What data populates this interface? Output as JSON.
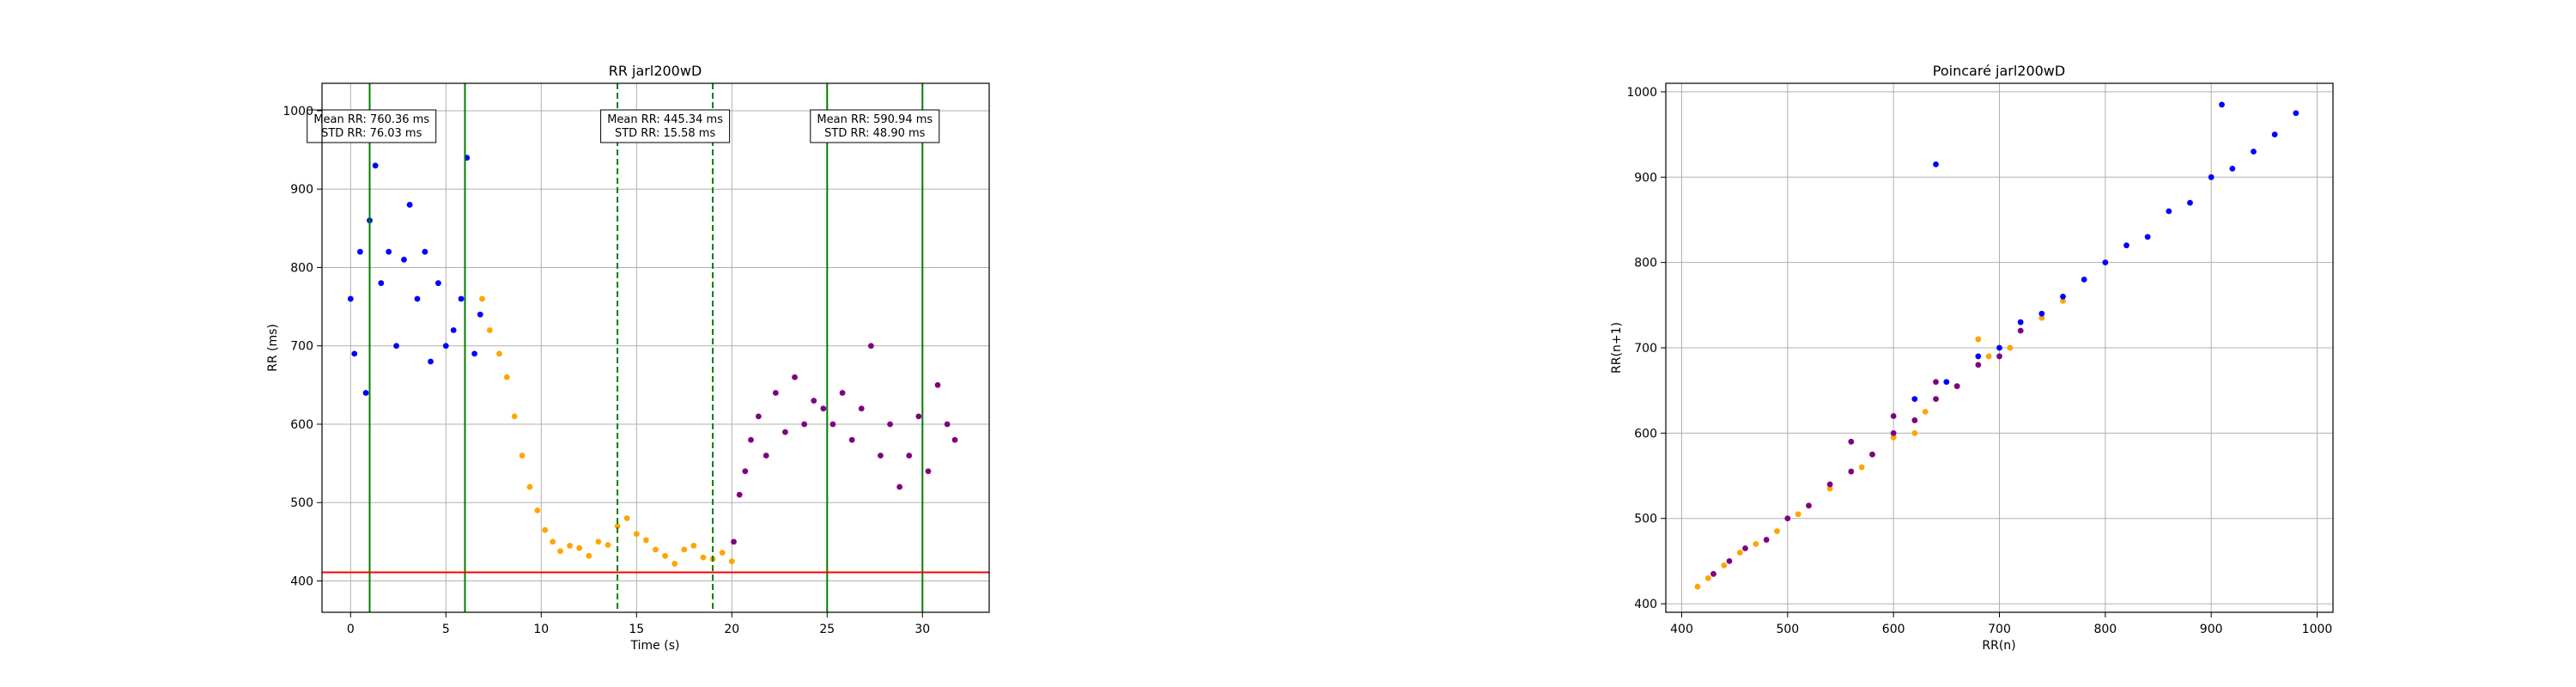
{
  "colors": {
    "blue": "#0000ff",
    "orange": "#ffa500",
    "purple": "#800080",
    "green": "#008000",
    "red": "#ff0000",
    "grid": "#b0b0b0"
  },
  "chart_data": [
    {
      "type": "scatter",
      "title": "RR jarl200wD",
      "xlabel": "Time (s)",
      "ylabel": "RR (ms)",
      "xlim": [
        -1.5,
        33.5
      ],
      "ylim": [
        360,
        1035
      ],
      "xticks": [
        0,
        5,
        10,
        15,
        20,
        25,
        30
      ],
      "yticks": [
        400,
        500,
        600,
        700,
        800,
        900,
        1000
      ],
      "grid": true,
      "vlines_solid": [
        1,
        6,
        25,
        30
      ],
      "vlines_dashed": [
        14,
        19
      ],
      "hline": 411,
      "annotations": [
        {
          "x": 1.1,
          "line1": "Mean RR: 760.36 ms",
          "line2": "STD RR: 76.03 ms"
        },
        {
          "x": 16.5,
          "line1": "Mean RR: 445.34 ms",
          "line2": "STD RR: 15.58 ms"
        },
        {
          "x": 27.5,
          "line1": "Mean RR: 590.94 ms",
          "line2": "STD RR: 48.90 ms"
        }
      ],
      "series": [
        {
          "color": "blue",
          "x": [
            0,
            0.2,
            0.5,
            0.8,
            1.0,
            1.3,
            1.6,
            2.0,
            2.4,
            2.8,
            3.1,
            3.5,
            3.9,
            4.2,
            4.6,
            5.0,
            5.4,
            5.8,
            6.1,
            6.5,
            6.8
          ],
          "y": [
            760,
            690,
            820,
            640,
            860,
            930,
            780,
            820,
            700,
            810,
            880,
            760,
            820,
            680,
            780,
            700,
            720,
            760,
            940,
            690,
            740
          ]
        },
        {
          "color": "orange",
          "x": [
            6.9,
            7.3,
            7.8,
            8.2,
            8.6,
            9.0,
            9.4,
            9.8,
            10.2,
            10.6,
            11.0,
            11.5,
            12.0,
            12.5,
            13.0,
            13.5,
            14.0,
            14.5,
            15.0,
            15.5,
            16.0,
            16.5,
            17.0,
            17.5,
            18.0,
            18.5,
            19.0,
            19.5,
            20.0
          ],
          "y": [
            760,
            720,
            690,
            660,
            610,
            560,
            520,
            490,
            465,
            450,
            438,
            445,
            442,
            432,
            450,
            446,
            470,
            480,
            460,
            452,
            440,
            432,
            422,
            440,
            445,
            430,
            428,
            436,
            425
          ]
        },
        {
          "color": "purple",
          "x": [
            20.1,
            20.4,
            20.7,
            21.0,
            21.4,
            21.8,
            22.3,
            22.8,
            23.3,
            23.8,
            24.3,
            24.8,
            25.3,
            25.8,
            26.3,
            26.8,
            27.3,
            27.8,
            28.3,
            28.8,
            29.3,
            29.8,
            30.3,
            30.8,
            31.3,
            31.7
          ],
          "y": [
            450,
            510,
            540,
            580,
            610,
            560,
            640,
            590,
            660,
            600,
            630,
            620,
            600,
            640,
            580,
            620,
            700,
            560,
            600,
            520,
            560,
            610,
            540,
            650,
            600,
            580
          ]
        }
      ]
    },
    {
      "type": "scatter",
      "title": "Poincaré jarl200wD",
      "xlabel": "RR(n)",
      "ylabel": "RR(n+1)",
      "xlim": [
        385,
        1015
      ],
      "ylim": [
        390,
        1010
      ],
      "xticks": [
        400,
        500,
        600,
        700,
        800,
        900,
        1000
      ],
      "yticks": [
        400,
        500,
        600,
        700,
        800,
        900,
        1000
      ],
      "grid": true,
      "series": [
        {
          "color": "orange",
          "x": [
            415,
            425,
            440,
            455,
            470,
            490,
            510,
            540,
            570,
            600,
            630,
            660,
            690,
            710,
            740,
            760,
            620,
            680
          ],
          "y": [
            420,
            430,
            445,
            460,
            470,
            485,
            505,
            535,
            560,
            595,
            625,
            655,
            690,
            700,
            735,
            755,
            600,
            710
          ]
        },
        {
          "color": "purple",
          "x": [
            430,
            445,
            460,
            480,
            500,
            520,
            540,
            560,
            580,
            600,
            620,
            640,
            660,
            680,
            700,
            720,
            560,
            600,
            640
          ],
          "y": [
            435,
            450,
            465,
            475,
            500,
            515,
            540,
            555,
            575,
            600,
            615,
            640,
            655,
            680,
            690,
            720,
            590,
            620,
            660
          ]
        },
        {
          "color": "blue",
          "x": [
            620,
            650,
            680,
            700,
            720,
            740,
            760,
            780,
            800,
            820,
            840,
            860,
            880,
            900,
            920,
            940,
            960,
            980,
            640,
            910
          ],
          "y": [
            640,
            660,
            690,
            700,
            730,
            740,
            760,
            780,
            800,
            820,
            830,
            860,
            870,
            900,
            910,
            930,
            950,
            975,
            915,
            985
          ]
        }
      ]
    }
  ]
}
